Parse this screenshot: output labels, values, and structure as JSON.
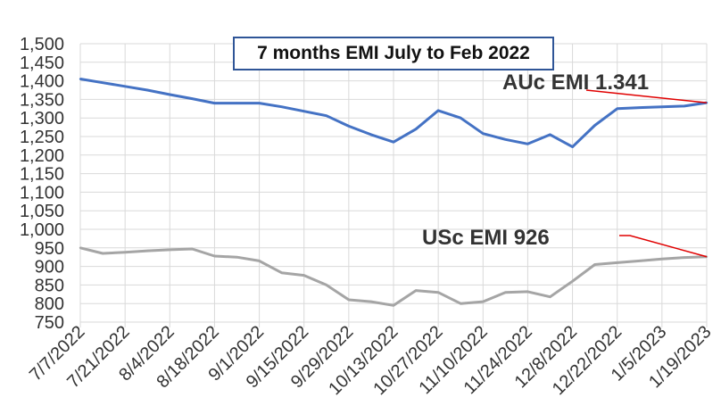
{
  "chart_data": {
    "type": "line",
    "title": "7 months EMI July to Feb 2022",
    "x": [
      "7/7/2022",
      "7/14/2022",
      "7/21/2022",
      "7/28/2022",
      "8/4/2022",
      "8/11/2022",
      "8/18/2022",
      "8/25/2022",
      "9/1/2022",
      "9/8/2022",
      "9/15/2022",
      "9/22/2022",
      "9/29/2022",
      "10/6/2022",
      "10/13/2022",
      "10/20/2022",
      "10/27/2022",
      "11/3/2022",
      "11/10/2022",
      "11/17/2022",
      "11/24/2022",
      "12/1/2022",
      "12/8/2022",
      "12/15/2022",
      "12/22/2022",
      "12/29/2022",
      "1/5/2023",
      "1/12/2023",
      "1/19/2023"
    ],
    "x_tick_labels": [
      "7/7/2022",
      "7/21/2022",
      "8/4/2022",
      "8/18/2022",
      "9/1/2022",
      "9/15/2022",
      "9/29/2022",
      "10/13/2022",
      "10/27/2022",
      "11/10/2022",
      "11/24/2022",
      "12/8/2022",
      "12/22/2022",
      "1/5/2023",
      "1/19/2023"
    ],
    "y_tick_labels": [
      "1,500",
      "1,450",
      "1,400",
      "1,350",
      "1,300",
      "1,250",
      "1,200",
      "1,150",
      "1,100",
      "1,050",
      "1,000",
      "950",
      "900",
      "850",
      "800",
      "750"
    ],
    "ylim": [
      750,
      1500
    ],
    "ystep": 50,
    "grid": true,
    "series": [
      {
        "key": "auc",
        "color": "#4472c4",
        "values": [
          1405,
          1395,
          1385,
          1375,
          1363,
          1352,
          1340,
          1340,
          1340,
          1330,
          1318,
          1306,
          1278,
          1255,
          1235,
          1270,
          1320,
          1300,
          1258,
          1242,
          1230,
          1255,
          1222,
          1280,
          1325,
          1328,
          1330,
          1332,
          1341
        ]
      },
      {
        "key": "usc",
        "color": "#a5a5a5",
        "values": [
          950,
          935,
          938,
          942,
          945,
          947,
          928,
          925,
          915,
          883,
          876,
          850,
          810,
          805,
          795,
          835,
          830,
          800,
          805,
          830,
          832,
          818,
          860,
          905,
          910,
          915,
          920,
          924,
          926
        ]
      }
    ],
    "annotations": [
      {
        "text": "AUc EMI 1.341",
        "series": "auc"
      },
      {
        "text": "USc EMI 926",
        "series": "usc"
      }
    ],
    "annotation_color": "#e00000"
  }
}
